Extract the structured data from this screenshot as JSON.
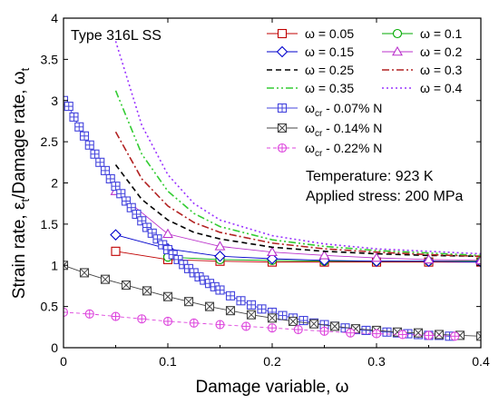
{
  "chart_data": {
    "type": "scatter",
    "annotations": {
      "top_left": "Type 316L SS",
      "temperature": "Temperature: 923 K",
      "stress": "Applied stress: 200 MPa"
    },
    "xlabel": "Damage variable, ω",
    "ylabel_parts": [
      "Strain rate, ε",
      "t",
      "/Damage rate, ω",
      "t"
    ],
    "xlim": [
      0,
      0.4
    ],
    "ylim": [
      0,
      4
    ],
    "x_ticks": [
      0,
      0.1,
      0.2,
      0.3,
      0.4
    ],
    "x_tick_labels": [
      "0",
      "0.1",
      "0.2",
      "0.3",
      "0.4"
    ],
    "y_ticks": [
      0,
      0.5,
      1,
      1.5,
      2,
      2.5,
      3,
      3.5,
      4
    ],
    "y_tick_labels": [
      "0",
      "0.5",
      "1",
      "1.5",
      "2",
      "2.5",
      "3",
      "3.5",
      "4"
    ],
    "grid": false,
    "legend_position": "top-right",
    "series": [
      {
        "name": "ω = 0.05",
        "color": "#c00000",
        "style": "solid-marker",
        "marker": "square",
        "x": [
          0.05,
          0.1,
          0.15,
          0.2,
          0.25,
          0.3,
          0.35,
          0.4
        ],
        "y": [
          1.17,
          1.07,
          1.05,
          1.04,
          1.04,
          1.04,
          1.04,
          1.04
        ]
      },
      {
        "name": "ω = 0.1",
        "color": "#00aa00",
        "style": "solid-marker",
        "marker": "circle",
        "x": [
          0.1,
          0.15,
          0.2,
          0.25,
          0.3,
          0.35,
          0.4
        ],
        "y": [
          1.1,
          1.07,
          1.06,
          1.05,
          1.05,
          1.05,
          1.05
        ]
      },
      {
        "name": "ω = 0.15",
        "color": "#0000cc",
        "style": "solid-marker",
        "marker": "diamond",
        "x": [
          0.05,
          0.1,
          0.15,
          0.2,
          0.25,
          0.3,
          0.35,
          0.4
        ],
        "y": [
          1.37,
          1.2,
          1.11,
          1.08,
          1.06,
          1.05,
          1.05,
          1.04
        ]
      },
      {
        "name": "ω = 0.2",
        "color": "#bb33cc",
        "style": "solid-marker",
        "marker": "triangle",
        "x": [
          0.05,
          0.1,
          0.15,
          0.2,
          0.25,
          0.3,
          0.35,
          0.4
        ],
        "y": [
          1.9,
          1.38,
          1.23,
          1.16,
          1.12,
          1.09,
          1.07,
          1.06
        ]
      },
      {
        "name": "ω = 0.25",
        "color": "#000000",
        "style": "dashed",
        "x": [
          0.05,
          0.075,
          0.1,
          0.125,
          0.15,
          0.2,
          0.25,
          0.3,
          0.35,
          0.4
        ],
        "y": [
          2.22,
          1.8,
          1.55,
          1.4,
          1.32,
          1.22,
          1.17,
          1.14,
          1.12,
          1.11
        ]
      },
      {
        "name": "ω = 0.3",
        "color": "#b22222",
        "style": "dashdot",
        "x": [
          0.05,
          0.075,
          0.1,
          0.125,
          0.15,
          0.2,
          0.25,
          0.3,
          0.35,
          0.4
        ],
        "y": [
          2.62,
          2.05,
          1.72,
          1.52,
          1.4,
          1.27,
          1.2,
          1.16,
          1.13,
          1.11
        ]
      },
      {
        "name": "ω = 0.35",
        "color": "#33cc33",
        "style": "dashdotdot",
        "x": [
          0.05,
          0.075,
          0.1,
          0.125,
          0.15,
          0.2,
          0.25,
          0.3,
          0.35,
          0.4
        ],
        "y": [
          3.12,
          2.35,
          1.9,
          1.63,
          1.47,
          1.31,
          1.23,
          1.18,
          1.15,
          1.12
        ]
      },
      {
        "name": "ω = 0.4",
        "color": "#9933ff",
        "style": "dotted",
        "x": [
          0.05,
          0.075,
          0.1,
          0.125,
          0.15,
          0.2,
          0.25,
          0.3,
          0.35,
          0.4
        ],
        "y": [
          3.72,
          2.7,
          2.1,
          1.75,
          1.55,
          1.36,
          1.26,
          1.2,
          1.17,
          1.14
        ]
      },
      {
        "name": "ω_cr - 0.07% N",
        "color": "#4444dd",
        "style": "solid-marker",
        "marker": "square-plus",
        "x": [
          0,
          0.005,
          0.01,
          0.015,
          0.02,
          0.025,
          0.03,
          0.035,
          0.04,
          0.045,
          0.05,
          0.055,
          0.06,
          0.065,
          0.07,
          0.075,
          0.08,
          0.085,
          0.09,
          0.095,
          0.1,
          0.105,
          0.11,
          0.115,
          0.12,
          0.125,
          0.13,
          0.135,
          0.14,
          0.145,
          0.15,
          0.16,
          0.17,
          0.18,
          0.19,
          0.2,
          0.21,
          0.22,
          0.23,
          0.24,
          0.25,
          0.26,
          0.27,
          0.28,
          0.29,
          0.3,
          0.31,
          0.32,
          0.33,
          0.34,
          0.35,
          0.36,
          0.37
        ],
        "y": [
          3.0,
          2.93,
          2.8,
          2.68,
          2.57,
          2.46,
          2.35,
          2.25,
          2.15,
          2.05,
          1.96,
          1.87,
          1.78,
          1.7,
          1.62,
          1.54,
          1.46,
          1.39,
          1.32,
          1.25,
          1.19,
          1.13,
          1.07,
          1.01,
          0.96,
          0.91,
          0.86,
          0.82,
          0.78,
          0.74,
          0.7,
          0.63,
          0.57,
          0.52,
          0.47,
          0.43,
          0.39,
          0.36,
          0.33,
          0.3,
          0.28,
          0.26,
          0.24,
          0.22,
          0.21,
          0.2,
          0.19,
          0.18,
          0.17,
          0.16,
          0.15,
          0.15,
          0.14
        ]
      },
      {
        "name": "ω_cr - 0.14% N",
        "color": "#444444",
        "style": "solid-marker",
        "marker": "square-x",
        "x": [
          0,
          0.02,
          0.04,
          0.06,
          0.08,
          0.1,
          0.12,
          0.14,
          0.16,
          0.18,
          0.2,
          0.22,
          0.24,
          0.26,
          0.28,
          0.3,
          0.32,
          0.34,
          0.36,
          0.38,
          0.4
        ],
        "y": [
          1.0,
          0.91,
          0.83,
          0.76,
          0.69,
          0.62,
          0.56,
          0.5,
          0.45,
          0.4,
          0.36,
          0.32,
          0.29,
          0.26,
          0.23,
          0.21,
          0.19,
          0.18,
          0.16,
          0.15,
          0.14
        ]
      },
      {
        "name": "ω_cr - 0.22% N",
        "color": "#dd44dd",
        "style": "dashed-marker",
        "marker": "circle-plus",
        "x": [
          0,
          0.025,
          0.05,
          0.075,
          0.1,
          0.125,
          0.15,
          0.175,
          0.2,
          0.225,
          0.25,
          0.275,
          0.3,
          0.325,
          0.35,
          0.375
        ],
        "y": [
          0.43,
          0.41,
          0.38,
          0.35,
          0.32,
          0.3,
          0.28,
          0.26,
          0.24,
          0.22,
          0.2,
          0.18,
          0.17,
          0.16,
          0.15,
          0.14
        ]
      }
    ]
  }
}
